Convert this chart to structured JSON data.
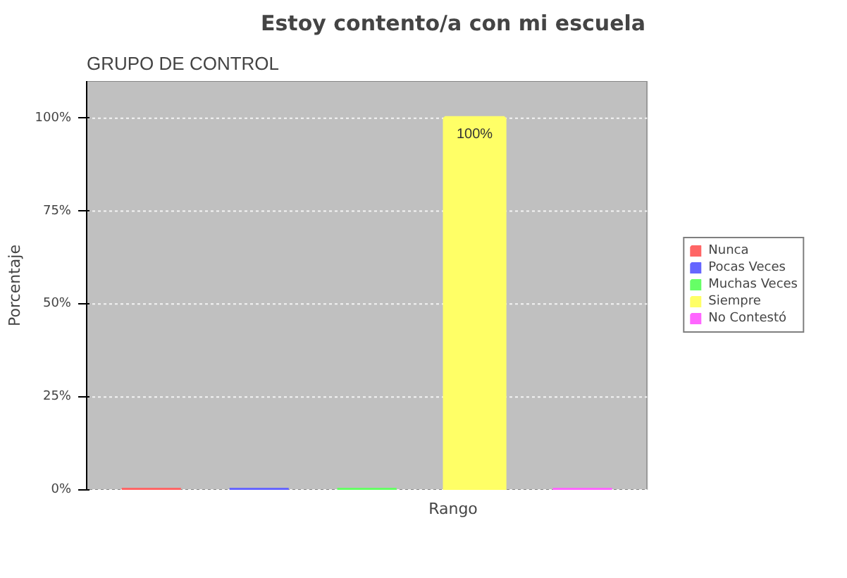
{
  "chart_data": {
    "type": "bar",
    "title": "Estoy contento/a con mi escuela",
    "xlabel": "Rango",
    "ylabel": "Porcentaje",
    "annotations": [
      "GRUPO DE CONTROL"
    ],
    "categories": [
      null,
      null,
      null,
      null,
      null
    ],
    "series": [
      {
        "name": "Nunca",
        "color": "#ff6666",
        "values": [
          0,
          null,
          null,
          null,
          null
        ]
      },
      {
        "name": "Pocas Veces",
        "color": "#6666ff",
        "values": [
          null,
          0,
          null,
          null,
          null
        ]
      },
      {
        "name": "Muchas Veces",
        "color": "#66ff66",
        "values": [
          null,
          null,
          0,
          null,
          null
        ]
      },
      {
        "name": "Siempre",
        "color": "#ffff66",
        "values": [
          null,
          null,
          null,
          100,
          null
        ],
        "value_labels": [
          null,
          null,
          null,
          "100%",
          null
        ]
      },
      {
        "name": "No Contestó",
        "color": "#ff66ff",
        "values": [
          null,
          null,
          null,
          null,
          0
        ]
      }
    ],
    "ylim": [
      0,
      110
    ],
    "yticks": [
      {
        "value": 0,
        "label": "0%"
      },
      {
        "value": 25,
        "label": "25%"
      },
      {
        "value": 50,
        "label": "50%"
      },
      {
        "value": 75,
        "label": "75%"
      },
      {
        "value": 100,
        "label": "100%"
      }
    ],
    "grid": "y",
    "legend": "right"
  }
}
